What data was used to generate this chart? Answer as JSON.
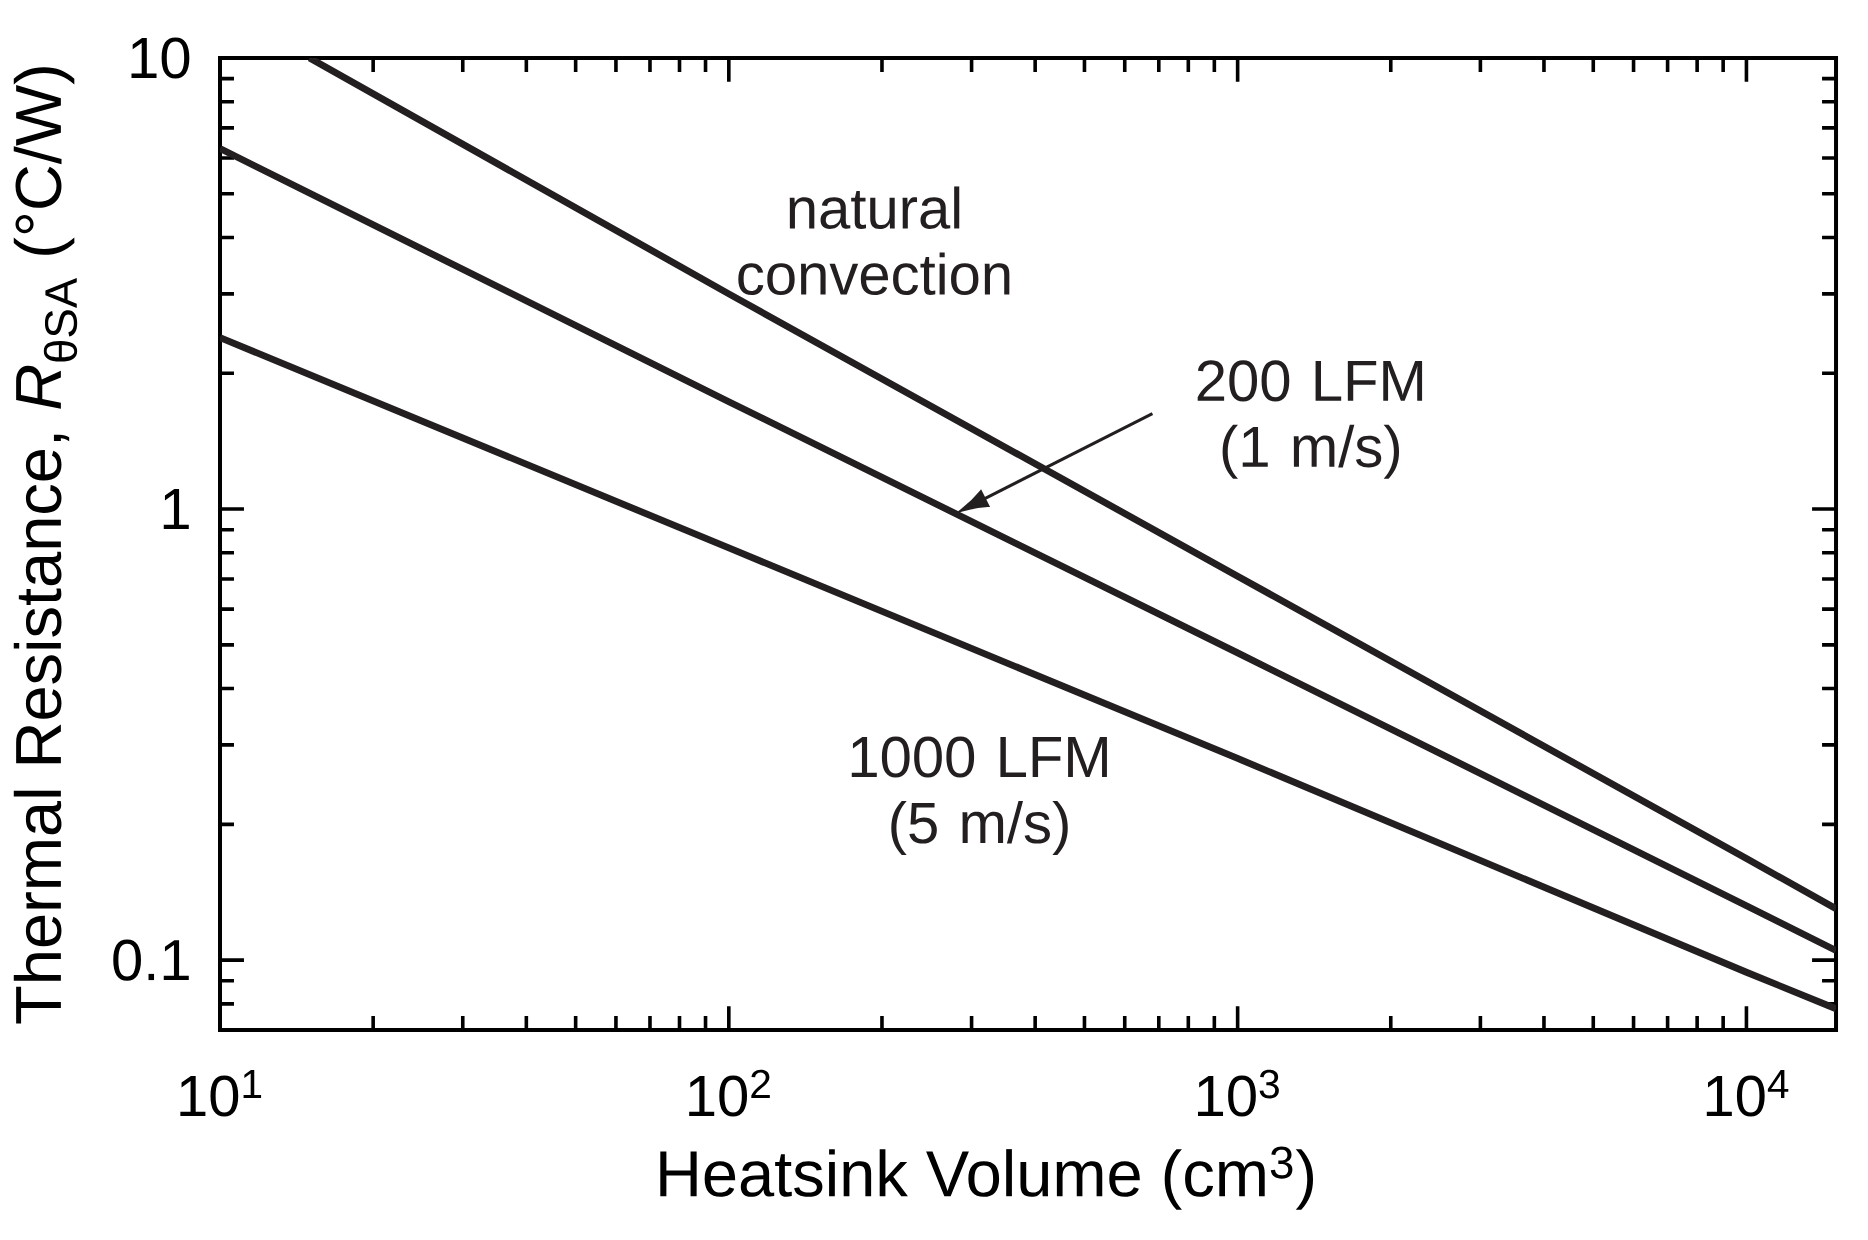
{
  "chart_data": {
    "type": "line",
    "xlabel": "Heatsink Volume (cm$^{3}$)",
    "ylabel": "Thermal Resistance, *R*$_{θSA}$ (°C/W)",
    "log": "xy",
    "xlim": [
      10,
      15000
    ],
    "ylim": [
      0.07,
      10
    ],
    "xticks": [
      {
        "value": 10,
        "label": "10$^{1}$"
      },
      {
        "value": 20,
        "label": null
      },
      {
        "value": 30,
        "label": null
      },
      {
        "value": 40,
        "label": null
      },
      {
        "value": 50,
        "label": null
      },
      {
        "value": 60,
        "label": null
      },
      {
        "value": 70,
        "label": null
      },
      {
        "value": 80,
        "label": null
      },
      {
        "value": 90,
        "label": null
      },
      {
        "value": 100,
        "label": "10$^{2}$"
      },
      {
        "value": 200,
        "label": null
      },
      {
        "value": 300,
        "label": null
      },
      {
        "value": 400,
        "label": null
      },
      {
        "value": 500,
        "label": null
      },
      {
        "value": 600,
        "label": null
      },
      {
        "value": 700,
        "label": null
      },
      {
        "value": 800,
        "label": null
      },
      {
        "value": 900,
        "label": null
      },
      {
        "value": 1000,
        "label": "10$^{3}$"
      },
      {
        "value": 2000,
        "label": null
      },
      {
        "value": 3000,
        "label": null
      },
      {
        "value": 4000,
        "label": null
      },
      {
        "value": 5000,
        "label": null
      },
      {
        "value": 6000,
        "label": null
      },
      {
        "value": 7000,
        "label": null
      },
      {
        "value": 8000,
        "label": null
      },
      {
        "value": 9000,
        "label": null
      },
      {
        "value": 10000,
        "label": "10$^{4}$"
      }
    ],
    "yticks": [
      {
        "value": 0.08,
        "label": null
      },
      {
        "value": 0.09,
        "label": null
      },
      0.1,
      {
        "value": 0.2,
        "label": null
      },
      {
        "value": 0.3,
        "label": null
      },
      {
        "value": 0.4,
        "label": null
      },
      {
        "value": 0.5,
        "label": null
      },
      {
        "value": 0.6,
        "label": null
      },
      {
        "value": 0.7,
        "label": null
      },
      {
        "value": 0.8,
        "label": null
      },
      {
        "value": 0.9,
        "label": null
      },
      1,
      {
        "value": 2,
        "label": null
      },
      {
        "value": 3,
        "label": null
      },
      {
        "value": 4,
        "label": null
      },
      {
        "value": 5,
        "label": null
      },
      {
        "value": 6,
        "label": null
      },
      {
        "value": 7,
        "label": null
      },
      {
        "value": 8,
        "label": null
      },
      {
        "value": 9,
        "label": null
      },
      10
    ],
    "series": [
      {
        "name": "natural convection",
        "color": "#231f20",
        "x": [
          15,
          100,
          1000,
          10000,
          15000
        ],
        "values": [
          10,
          3.0,
          0.71,
          0.168,
          0.13
        ]
      },
      {
        "name": "200 LFM (1 m/s)",
        "color": "#231f20",
        "x": [
          10,
          100,
          1000,
          10000,
          15000
        ],
        "values": [
          6.3,
          1.73,
          0.48,
          0.132,
          0.105
        ]
      },
      {
        "name": "1000 LFM (5 m/s)",
        "color": "#231f20",
        "x": [
          10,
          100,
          1000,
          10000,
          15000
        ],
        "values": [
          2.4,
          0.82,
          0.28,
          0.094,
          0.078
        ]
      }
    ]
  }
}
